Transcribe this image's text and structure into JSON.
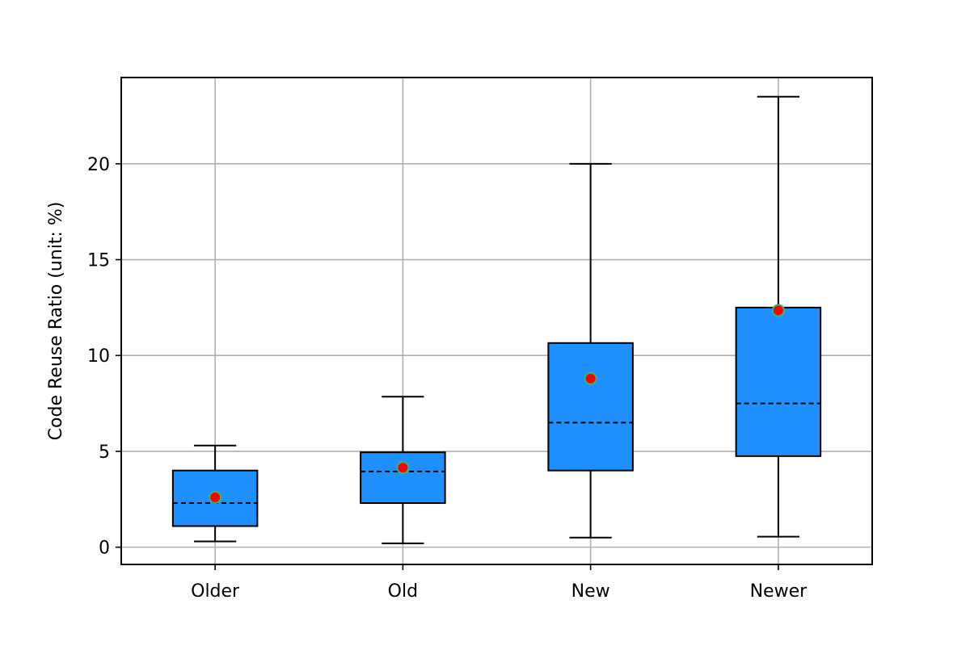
{
  "chart_data": {
    "type": "box",
    "title": "",
    "xlabel": "",
    "ylabel": "Code Reuse Ratio (unit: %)",
    "ylim": [
      -0.9,
      24.5
    ],
    "yticks": [
      0,
      5,
      10,
      15,
      20
    ],
    "grid": true,
    "categories": [
      "Older",
      "Old",
      "New",
      "Newer"
    ],
    "boxes": [
      {
        "label": "Older",
        "whisker_low": 0.3,
        "q1": 1.1,
        "median": 2.3,
        "q3": 4.0,
        "whisker_high": 5.3,
        "mean": 2.6
      },
      {
        "label": "Old",
        "whisker_low": 0.2,
        "q1": 2.3,
        "median": 3.95,
        "q3": 4.95,
        "whisker_high": 7.85,
        "mean": 4.15
      },
      {
        "label": "New",
        "whisker_low": 0.5,
        "q1": 4.0,
        "median": 6.5,
        "q3": 10.65,
        "whisker_high": 20.0,
        "mean": 8.8
      },
      {
        "label": "Newer",
        "whisker_low": 0.55,
        "q1": 4.75,
        "median": 7.5,
        "q3": 12.5,
        "whisker_high": 23.5,
        "mean": 12.35
      }
    ],
    "colors": {
      "box_fill": "#1e90ff",
      "box_edge": "#000000",
      "median_line": "#000000",
      "mean_marker_fill": "#ff0000",
      "mean_marker_edge": "#3cb371",
      "grid": "#b0b0b0"
    }
  }
}
